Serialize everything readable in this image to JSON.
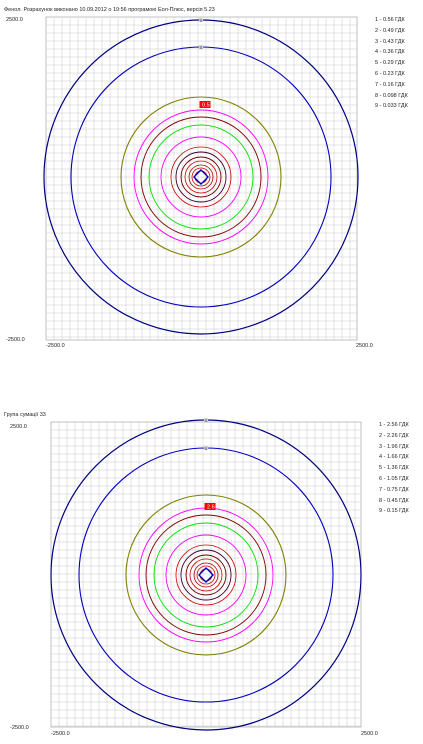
{
  "plots": [
    {
      "title": "Фенол. Розрахунок виконано 10.09.2012 о 19:56 програмою Еол-Плюс, версія 5.23",
      "axis": {
        "y_top": "2500.0",
        "y_bottom": "-2500.0",
        "x_left": "-2500.0",
        "x_right": "2500.0"
      },
      "legend": [
        "1 - 0.56 ГДК",
        "2 - 0.49 ГДК",
        "3 - 0.43 ГДК",
        "4 - 0.36 ГДК",
        "5 - 0.29 ГДК",
        "6 - 0.23 ГДК",
        "7 - 0.16 ГДК",
        "8 - 0.098 ГДК",
        "9 - 0.033 ГДК"
      ],
      "max_label": "0.5"
    },
    {
      "title": "Група сумації 33",
      "axis": {
        "y_top": "2500.0",
        "y_bottom": "-2500.0",
        "x_left": "-2500.0",
        "x_right": "2500.0"
      },
      "legend": [
        "1 - 2.56 ГДК",
        "2 - 2.26 ГДК",
        "3 - 1.96 ГДК",
        "4 - 1.66 ГДК",
        "5 - 1.36 ГДК",
        "6 - 1.05 ГДК",
        "7 - 0.75 ГДК",
        "8 - 0.45 ГДК",
        "9 - 0.15 ГДК"
      ],
      "max_label": "2.6"
    }
  ],
  "colors": {
    "grid": "#c8c8c8",
    "isolines": [
      "#b00000",
      "#cc0000",
      "#6a0000",
      "#3a0030",
      "#ff00ff",
      "#00e000",
      "#800000",
      "#808000",
      "#0000c0",
      "#000080"
    ],
    "marker": "#ff0000"
  }
}
